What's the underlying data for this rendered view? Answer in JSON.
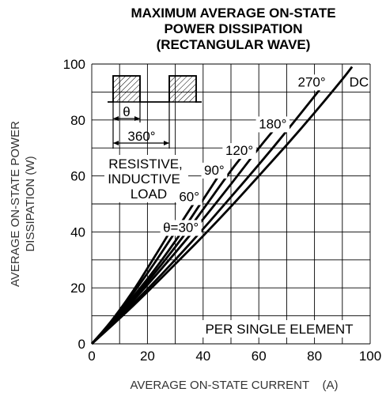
{
  "chart_data": {
    "type": "line",
    "title": [
      "MAXIMUM AVERAGE ON-STATE",
      "POWER DISSIPATION",
      "(RECTANGULAR WAVE)"
    ],
    "xlabel": "AVERAGE ON-STATE CURRENT    (A)",
    "ylabel": [
      "AVERAGE ON-STATE POWER",
      "DISSIPATION    (W)"
    ],
    "xlim": [
      0,
      100
    ],
    "ylim": [
      0,
      100
    ],
    "xticks": [
      "0",
      "20",
      "40",
      "60",
      "80",
      "100"
    ],
    "yticks": [
      "0",
      "20",
      "40",
      "60",
      "80",
      "100"
    ],
    "grid": true,
    "series": [
      {
        "name": "θ=30°",
        "x": [
          0,
          5,
          10,
          15,
          20,
          25,
          28
        ],
        "y": [
          0,
          5.5,
          12,
          19,
          27,
          35,
          40
        ]
      },
      {
        "name": "60°",
        "x": [
          0,
          5,
          10,
          20,
          30,
          36.5
        ],
        "y": [
          0,
          5.5,
          11.5,
          25,
          40,
          50
        ]
      },
      {
        "name": "90°",
        "x": [
          0,
          10,
          20,
          30,
          40,
          45.5
        ],
        "y": [
          0,
          11,
          23,
          36.5,
          51.5,
          60
        ]
      },
      {
        "name": "120°",
        "x": [
          0,
          10,
          20,
          30,
          40,
          50,
          54
        ],
        "y": [
          0,
          10.5,
          22,
          34.5,
          48,
          62,
          67
        ]
      },
      {
        "name": "180°",
        "x": [
          0,
          10,
          20,
          30,
          40,
          50,
          60,
          65
        ],
        "y": [
          0,
          10,
          21,
          32.5,
          44.5,
          57,
          70,
          76
        ]
      },
      {
        "name": "270°",
        "x": [
          0,
          10,
          20,
          30,
          40,
          50,
          60,
          70,
          80,
          82
        ],
        "y": [
          0,
          9.5,
          19.5,
          30,
          41,
          52.5,
          64,
          76,
          88.5,
          91
        ]
      },
      {
        "name": "DC",
        "x": [
          0,
          10,
          20,
          30,
          40,
          50,
          60,
          70,
          80,
          90,
          93.5
        ],
        "y": [
          0,
          9,
          18.5,
          28.5,
          38.5,
          49,
          60,
          71,
          82.5,
          94.5,
          99
        ]
      }
    ],
    "annotations": {
      "theta": "θ",
      "period": "360°",
      "load": [
        "RESISTIVE,",
        "INDUCTIVE",
        "LOAD"
      ],
      "element": "PER SINGLE ELEMENT"
    }
  }
}
